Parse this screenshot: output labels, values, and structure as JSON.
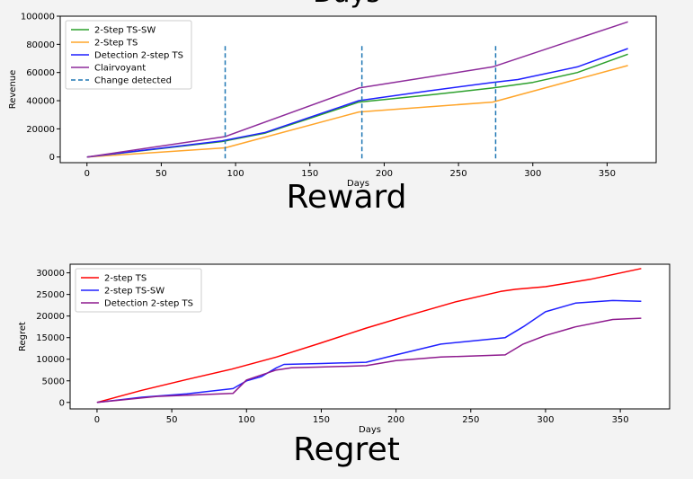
{
  "top_title": "Days",
  "captions": {
    "top": "Reward",
    "bottom": "Regret"
  },
  "chart_data": [
    {
      "type": "line",
      "title": "",
      "xlabel": "Days",
      "ylabel": "Revenue",
      "xlim": [
        -18,
        383
      ],
      "ylim": [
        -4000,
        100000
      ],
      "xticks": [
        0,
        50,
        100,
        150,
        200,
        250,
        300,
        350
      ],
      "yticks": [
        0,
        20000,
        40000,
        60000,
        80000,
        100000
      ],
      "legend": "top-left",
      "grid": false,
      "series": [
        {
          "name": "2-Step TS-SW",
          "color": "#2ca02c",
          "x": [
            0,
            91,
            120,
            183,
            230,
            273,
            300,
            330,
            364
          ],
          "y": [
            0,
            11000,
            17000,
            39000,
            44000,
            49000,
            53000,
            60000,
            73000
          ]
        },
        {
          "name": "2-Step TS",
          "color": "#ffa52a",
          "x": [
            0,
            93,
            183,
            273,
            364
          ],
          "y": [
            0,
            6500,
            32000,
            39000,
            65000
          ]
        },
        {
          "name": "Detection 2-step TS",
          "color": "#1f1fff",
          "x": [
            0,
            91,
            120,
            183,
            230,
            273,
            290,
            330,
            364
          ],
          "y": [
            0,
            11500,
            17500,
            40000,
            47000,
            53000,
            55000,
            64000,
            77000
          ]
        },
        {
          "name": "Clairvoyant",
          "color": "#8e2c9b",
          "x": [
            0,
            93,
            183,
            273,
            364
          ],
          "y": [
            0,
            14500,
            49000,
            64000,
            96000
          ]
        },
        {
          "name": "Change detected",
          "color": "#1f77b4",
          "dashed": true,
          "vlines": [
            93,
            185,
            275
          ],
          "ymin": -1000,
          "ymax": 80000
        }
      ]
    },
    {
      "type": "line",
      "title": "",
      "xlabel": "Days",
      "ylabel": "Regret",
      "xlim": [
        -18,
        383
      ],
      "ylim": [
        -1500,
        32000
      ],
      "xticks": [
        0,
        50,
        100,
        150,
        200,
        250,
        300,
        350
      ],
      "yticks": [
        0,
        5000,
        10000,
        15000,
        20000,
        25000,
        30000
      ],
      "legend": "top-left",
      "grid": false,
      "series": [
        {
          "name": "2-step TS",
          "color": "#ff0000",
          "x": [
            0,
            30,
            60,
            90,
            120,
            150,
            180,
            210,
            240,
            270,
            280,
            300,
            330,
            364
          ],
          "y": [
            0,
            2800,
            5300,
            7700,
            10500,
            13800,
            17200,
            20300,
            23300,
            25700,
            26200,
            26800,
            28500,
            31000
          ]
        },
        {
          "name": "2-step TS-SW",
          "color": "#2020ff",
          "x": [
            0,
            30,
            60,
            91,
            100,
            110,
            120,
            125,
            150,
            180,
            200,
            230,
            273,
            285,
            300,
            320,
            345,
            364
          ],
          "y": [
            0,
            1200,
            2000,
            3200,
            5000,
            6000,
            8000,
            8800,
            9000,
            9300,
            11000,
            13500,
            15000,
            17500,
            21000,
            23000,
            23600,
            23400
          ]
        },
        {
          "name": "Detection 2-step TS",
          "color": "#8e1a8e",
          "x": [
            0,
            40,
            91,
            100,
            120,
            130,
            150,
            180,
            200,
            230,
            273,
            285,
            300,
            320,
            345,
            364
          ],
          "y": [
            0,
            1400,
            2100,
            5200,
            7500,
            8000,
            8200,
            8500,
            9700,
            10500,
            11000,
            13500,
            15500,
            17500,
            19200,
            19500
          ]
        }
      ]
    }
  ]
}
